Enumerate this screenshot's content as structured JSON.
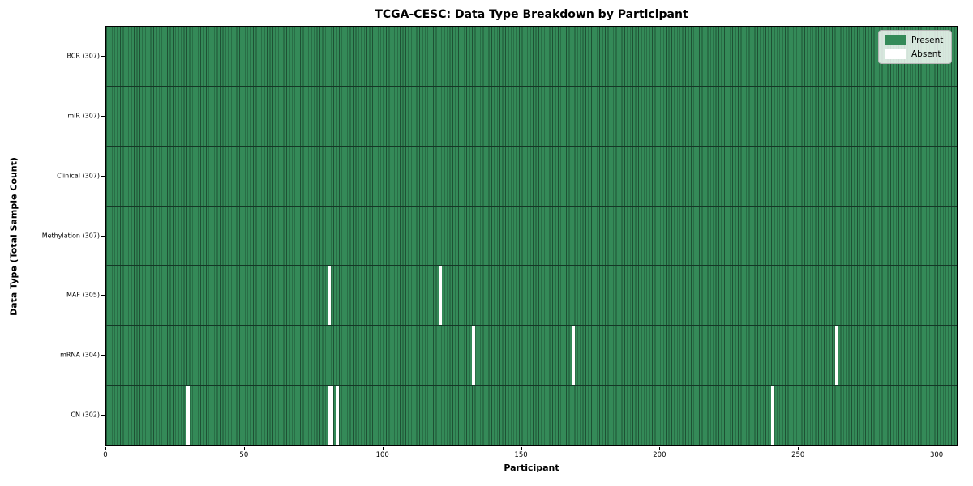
{
  "figure": {
    "title": "TCGA-CESC: Data Type Breakdown by Participant"
  },
  "colors": {
    "present": "#348a58",
    "absent": "#ffffff",
    "cell_edge": "#1e5134",
    "row_separator": "#143826",
    "spine": "#000000",
    "legend_bg": "#d9e8de",
    "legend_border": "#b5b5b5",
    "text": "#000000"
  },
  "legend": {
    "items": [
      {
        "label": "Present",
        "color": "#348a58"
      },
      {
        "label": "Absent",
        "color": "#ffffff"
      }
    ]
  },
  "chart_data": {
    "type": "heatmap",
    "title": "TCGA-CESC: Data Type Breakdown by Participant",
    "xlabel": "Participant",
    "ylabel": "Data Type (Total Sample Count)",
    "x_ticks": [
      0,
      50,
      100,
      150,
      200,
      250,
      300
    ],
    "xlim": [
      0,
      307
    ],
    "n_participants": 307,
    "legend_entries": [
      "Present",
      "Absent"
    ],
    "legend_position": "upper right",
    "grid": false,
    "rows": [
      {
        "label": "BCR (307)",
        "data_type": "BCR",
        "present_count": 307,
        "absent_participants": []
      },
      {
        "label": "miR (307)",
        "data_type": "miR",
        "present_count": 307,
        "absent_participants": []
      },
      {
        "label": "Clinical (307)",
        "data_type": "Clinical",
        "present_count": 307,
        "absent_participants": []
      },
      {
        "label": "Methylation (307)",
        "data_type": "Methylation",
        "present_count": 307,
        "absent_participants": []
      },
      {
        "label": "MAF (305)",
        "data_type": "MAF",
        "present_count": 305,
        "absent_participants": [
          80,
          120
        ]
      },
      {
        "label": "mRNA (304)",
        "data_type": "mRNA",
        "present_count": 304,
        "absent_participants": [
          132,
          168,
          263
        ]
      },
      {
        "label": "CN (302)",
        "data_type": "CN",
        "present_count": 302,
        "absent_participants": [
          29,
          80,
          81,
          83,
          240
        ]
      }
    ]
  }
}
